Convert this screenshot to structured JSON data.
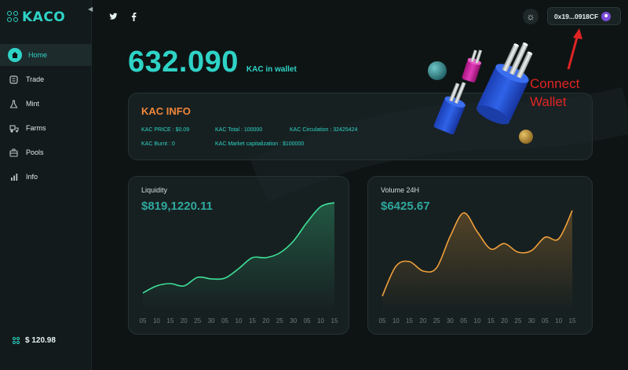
{
  "app": {
    "brand": "KACO"
  },
  "sidebar": {
    "items": [
      {
        "label": "Home",
        "icon": "home-icon",
        "active": true
      },
      {
        "label": "Trade",
        "icon": "trade-icon",
        "active": false
      },
      {
        "label": "Mint",
        "icon": "flask-icon",
        "active": false
      },
      {
        "label": "Farms",
        "icon": "tractor-icon",
        "active": false
      },
      {
        "label": "Pools",
        "icon": "pool-icon",
        "active": false
      },
      {
        "label": "Info",
        "icon": "bar-chart-icon",
        "active": false
      }
    ],
    "price": "$ 120.98"
  },
  "header": {
    "social": [
      "twitter-icon",
      "facebook-icon"
    ],
    "theme_icon": "sun-icon",
    "wallet_address": "0x19...0918CF"
  },
  "balance": {
    "amount": "632.090",
    "unit": "KAC in wallet"
  },
  "annotation": {
    "line1": "Connect",
    "line2": "Wallet",
    "color": "#e02424"
  },
  "kac_info": {
    "title": "KAC INFO",
    "price": "KAC PRICE :  $0.09",
    "total": "KAC Total : 100000",
    "circulation": "KAC Circulation : 32425424",
    "burnt": "KAC Burnt :   0",
    "market_cap": "KAC Market capitalization : $100000"
  },
  "colors": {
    "accent": "#2ed3c6",
    "info_title": "#f0873a",
    "liquidity_line": "#3ee29a",
    "volume_line": "#f0a03a"
  },
  "chart_data": [
    {
      "type": "area",
      "title": "Liquidity",
      "value_label": "$819,1220.11",
      "categories": [
        "05",
        "10",
        "15",
        "20",
        "25",
        "30",
        "05",
        "10",
        "15",
        "20",
        "25",
        "30",
        "05",
        "10",
        "15"
      ],
      "values": [
        22,
        31,
        34,
        31,
        42,
        40,
        41,
        53,
        67,
        67,
        73,
        88,
        112,
        132,
        137
      ],
      "ylim": [
        0,
        150
      ]
    },
    {
      "type": "area",
      "title": "Volume 24H",
      "value_label": "$6425.67",
      "categories": [
        "05",
        "10",
        "15",
        "20",
        "25",
        "30",
        "05",
        "10",
        "15",
        "20",
        "25",
        "30",
        "05",
        "10",
        "15"
      ],
      "values": [
        18,
        56,
        62,
        50,
        54,
        94,
        124,
        100,
        78,
        85,
        74,
        76,
        93,
        91,
        127
      ],
      "ylim": [
        0,
        150
      ]
    }
  ]
}
